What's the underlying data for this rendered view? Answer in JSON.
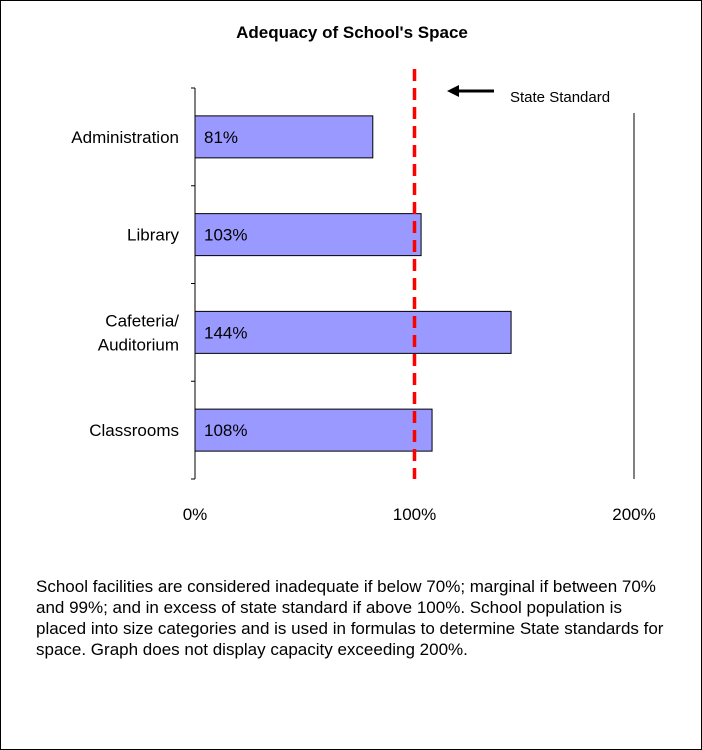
{
  "chart_data": {
    "type": "bar",
    "orientation": "horizontal",
    "title": "Adequacy of School's Space",
    "categories": [
      "Administration",
      "Library",
      "Cafeteria/ Auditorium",
      "Classrooms"
    ],
    "category_lines": [
      [
        "Administration"
      ],
      [
        "Library"
      ],
      [
        "Cafeteria/",
        "Auditorium"
      ],
      [
        "Classrooms"
      ]
    ],
    "values": [
      81,
      103,
      144,
      108
    ],
    "data_labels": [
      "81%",
      "103%",
      "144%",
      "108%"
    ],
    "xlim": [
      0,
      200
    ],
    "xticks": [
      0,
      100,
      200
    ],
    "xtick_labels": [
      "0%",
      "100%",
      "200%"
    ],
    "grid": false,
    "reference_line": {
      "value": 100,
      "style": "dashed"
    },
    "annotation": {
      "text": "State Standard"
    },
    "colors": {
      "bar_fill": "#9999FF",
      "bar_stroke": "#000000",
      "reference_line": "#FF0000",
      "axis": "#000000"
    }
  },
  "note": "School facilities are considered inadequate if below 70%; marginal if between 70% and 99%; and in excess of state standard if above 100%.  School population is placed into size categories and is used in formulas to determine State standards for space.  Graph does not display capacity exceeding 200%."
}
